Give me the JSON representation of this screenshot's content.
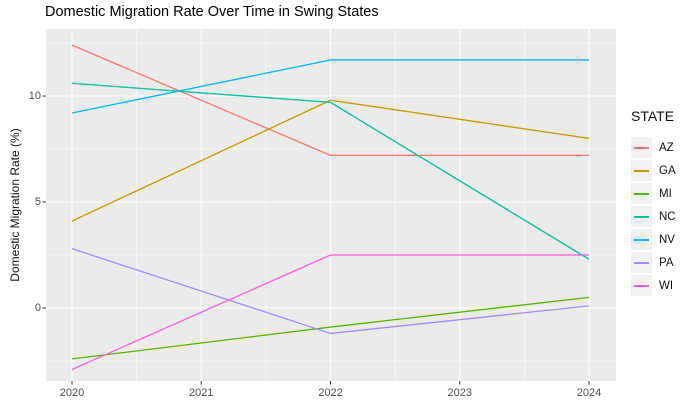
{
  "chart_data": {
    "type": "line",
    "title": "Domestic Migration Rate Over Time in Swing States",
    "xlabel": "",
    "ylabel": "Domestic Migration Rate (%)",
    "legend_title": "STATE",
    "legend_position": "right",
    "grid": true,
    "panel_background": "#EBEBEB",
    "gridline_color": "#FFFFFF",
    "tick_label_color": "#4D4D4D",
    "x": [
      2020,
      2022,
      2024
    ],
    "x_ticks": [
      "2020",
      "2021",
      "2022",
      "2023",
      "2024"
    ],
    "x_tick_values": [
      2020,
      2021,
      2022,
      2023,
      2024
    ],
    "y_ticks": [
      "0",
      "5",
      "10"
    ],
    "y_tick_values": [
      0,
      5,
      10
    ],
    "xlim": [
      2019.8,
      2024.21
    ],
    "ylim": [
      -3.44,
      13.2
    ],
    "series": [
      {
        "name": "AZ",
        "color": "#F8766D",
        "values": [
          12.4,
          7.2,
          7.2
        ]
      },
      {
        "name": "GA",
        "color": "#C49A00",
        "values": [
          4.1,
          9.8,
          8.0
        ]
      },
      {
        "name": "MI",
        "color": "#53B400",
        "values": [
          -2.4,
          -0.9,
          0.5
        ]
      },
      {
        "name": "NC",
        "color": "#00C094",
        "values": [
          10.6,
          9.7,
          2.3
        ]
      },
      {
        "name": "NV",
        "color": "#00B6EB",
        "values": [
          9.2,
          11.7,
          11.7
        ]
      },
      {
        "name": "PA",
        "color": "#A58AFF",
        "values": [
          2.8,
          -1.2,
          0.1
        ]
      },
      {
        "name": "WI",
        "color": "#FB61D7",
        "values": [
          -2.9,
          2.5,
          2.5
        ]
      }
    ]
  }
}
